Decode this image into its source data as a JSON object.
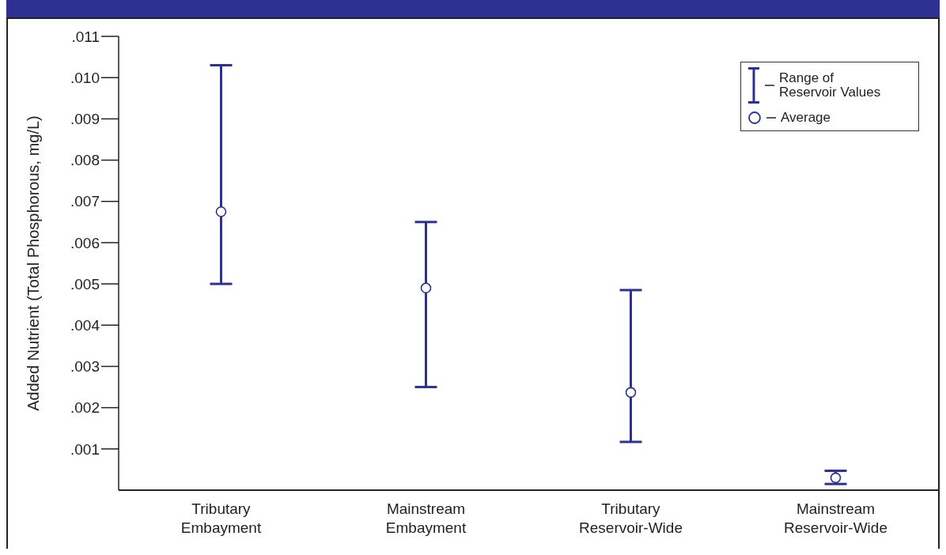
{
  "chart_data": {
    "type": "scatter",
    "ylabel": "Added Nutrient (Total Phosphorous, mg/L)",
    "categories": [
      "Tributary Embayment",
      "Mainstream Embayment",
      "Tributary Reservoir-Wide",
      "Mainstream Reservoir-Wide"
    ],
    "series": [
      {
        "name": "Average",
        "color": "#2e3192",
        "values": [
          0.00675,
          0.0049,
          0.00237,
          0.0003
        ],
        "errors": [
          [
            0.005,
            0.0103
          ],
          [
            0.0025,
            0.0065
          ],
          [
            0.00117,
            0.00485
          ],
          [
            0.00015,
            0.00047
          ]
        ]
      }
    ],
    "annotations": [
      "Range of Reservoir Values"
    ],
    "ylim": [
      0,
      0.011
    ],
    "yticks": [
      {
        "value": 0.001,
        "label": ".001"
      },
      {
        "value": 0.002,
        "label": ".002"
      },
      {
        "value": 0.003,
        "label": ".003"
      },
      {
        "value": 0.004,
        "label": ".004"
      },
      {
        "value": 0.005,
        "label": ".005"
      },
      {
        "value": 0.006,
        "label": ".006"
      },
      {
        "value": 0.007,
        "label": ".007"
      },
      {
        "value": 0.008,
        "label": ".008"
      },
      {
        "value": 0.009,
        "label": ".009"
      },
      {
        "value": 0.01,
        "label": ".010"
      },
      {
        "value": 0.011,
        "label": ".011"
      }
    ],
    "marker": "circle",
    "grid": false,
    "legend": "top right"
  }
}
